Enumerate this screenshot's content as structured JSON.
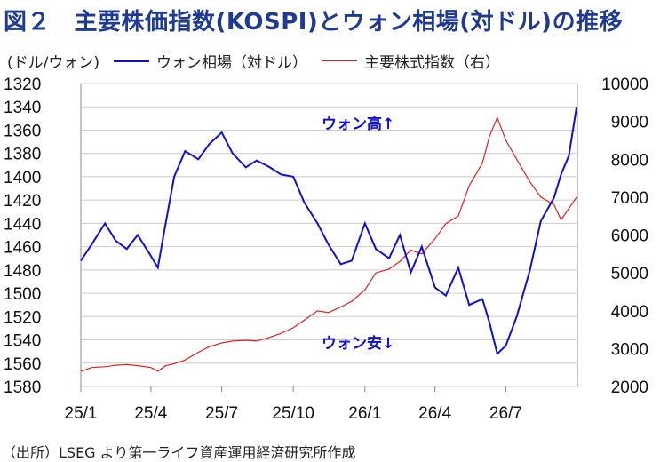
{
  "title": "図２　主要株価指数(KOSPI)とウォン相場(対ドル)の推移",
  "left_unit": "(ドル/ウォン)",
  "legend": {
    "fx_label": "ウォン相場（対ドル）",
    "index_label": "主要株式指数（右）"
  },
  "source": "（出所）LSEG より第一ライフ資産運用経済研究所作成",
  "colors": {
    "fx": "#1010d0",
    "index": "#e02020",
    "grid": "#cccccc",
    "title": "#1f3a93"
  },
  "chart_data": {
    "type": "line",
    "x_ticks": [
      "25/1",
      "25/4",
      "25/7",
      "25/10",
      "26/1",
      "26/4",
      "26/7"
    ],
    "x_range": [
      "2025-01",
      "2026-10"
    ],
    "y_left": {
      "range": [
        1320,
        1580
      ],
      "inverted": true,
      "ticks": [
        1320,
        1340,
        1360,
        1380,
        1400,
        1420,
        1440,
        1460,
        1480,
        1500,
        1520,
        1540,
        1560,
        1580
      ]
    },
    "y_right": {
      "range": [
        2000,
        10000
      ],
      "ticks": [
        2000,
        3000,
        4000,
        5000,
        6000,
        7000,
        8000,
        9000,
        10000
      ]
    },
    "grid": true,
    "annotations": [
      "ウォン高↑",
      "ウォン安↓"
    ],
    "series": [
      {
        "name": "ウォン相場（対ドル）",
        "axis": "left",
        "x": [
          "2025-01",
          "2025-01-15",
          "2025-02",
          "2025-02-15",
          "2025-03",
          "2025-03-15",
          "2025-04",
          "2025-04-10",
          "2025-04-20",
          "2025-05",
          "2025-05-15",
          "2025-06",
          "2025-06-15",
          "2025-07",
          "2025-07-15",
          "2025-08",
          "2025-08-15",
          "2025-09",
          "2025-09-15",
          "2025-10",
          "2025-10-15",
          "2025-11",
          "2025-11-15",
          "2025-12",
          "2025-12-15",
          "2026-01",
          "2026-01-15",
          "2026-02",
          "2026-02-15",
          "2026-03",
          "2026-03-15",
          "2026-04",
          "2026-04-15",
          "2026-05",
          "2026-05-15",
          "2026-06",
          "2026-06-10",
          "2026-06-20",
          "2026-07",
          "2026-07-15",
          "2026-08",
          "2026-08-15",
          "2026-09",
          "2026-09-10",
          "2026-09-20",
          "2026-09-30"
        ],
        "values": [
          1472,
          1458,
          1440,
          1455,
          1462,
          1450,
          1468,
          1478,
          1440,
          1400,
          1378,
          1385,
          1372,
          1362,
          1380,
          1392,
          1386,
          1392,
          1398,
          1400,
          1422,
          1440,
          1458,
          1475,
          1472,
          1440,
          1462,
          1470,
          1450,
          1482,
          1460,
          1495,
          1502,
          1478,
          1510,
          1505,
          1525,
          1552,
          1545,
          1520,
          1480,
          1438,
          1418,
          1398,
          1382,
          1340
        ]
      },
      {
        "name": "主要株式指数（右）",
        "axis": "right",
        "x": [
          "2025-01",
          "2025-01-15",
          "2025-02",
          "2025-02-15",
          "2025-03",
          "2025-03-15",
          "2025-04",
          "2025-04-10",
          "2025-04-20",
          "2025-05",
          "2025-05-15",
          "2025-06",
          "2025-06-15",
          "2025-07",
          "2025-07-15",
          "2025-08",
          "2025-08-15",
          "2025-09",
          "2025-09-15",
          "2025-10",
          "2025-10-15",
          "2025-11",
          "2025-11-15",
          "2025-12",
          "2025-12-15",
          "2026-01",
          "2026-01-15",
          "2026-02",
          "2026-02-15",
          "2026-03",
          "2026-03-15",
          "2026-04",
          "2026-04-15",
          "2026-05",
          "2026-05-15",
          "2026-06",
          "2026-06-10",
          "2026-06-20",
          "2026-07",
          "2026-07-15",
          "2026-08",
          "2026-08-15",
          "2026-09",
          "2026-09-10",
          "2026-09-20",
          "2026-09-30"
        ],
        "values": [
          2400,
          2500,
          2520,
          2560,
          2580,
          2550,
          2500,
          2400,
          2550,
          2600,
          2700,
          2900,
          3050,
          3150,
          3200,
          3220,
          3200,
          3300,
          3400,
          3550,
          3750,
          4000,
          3950,
          4100,
          4250,
          4550,
          5000,
          5100,
          5300,
          5600,
          5500,
          5900,
          6300,
          6500,
          7300,
          7900,
          8600,
          9100,
          8500,
          8000,
          7400,
          7000,
          6800,
          6400,
          6700,
          7000
        ]
      }
    ]
  }
}
